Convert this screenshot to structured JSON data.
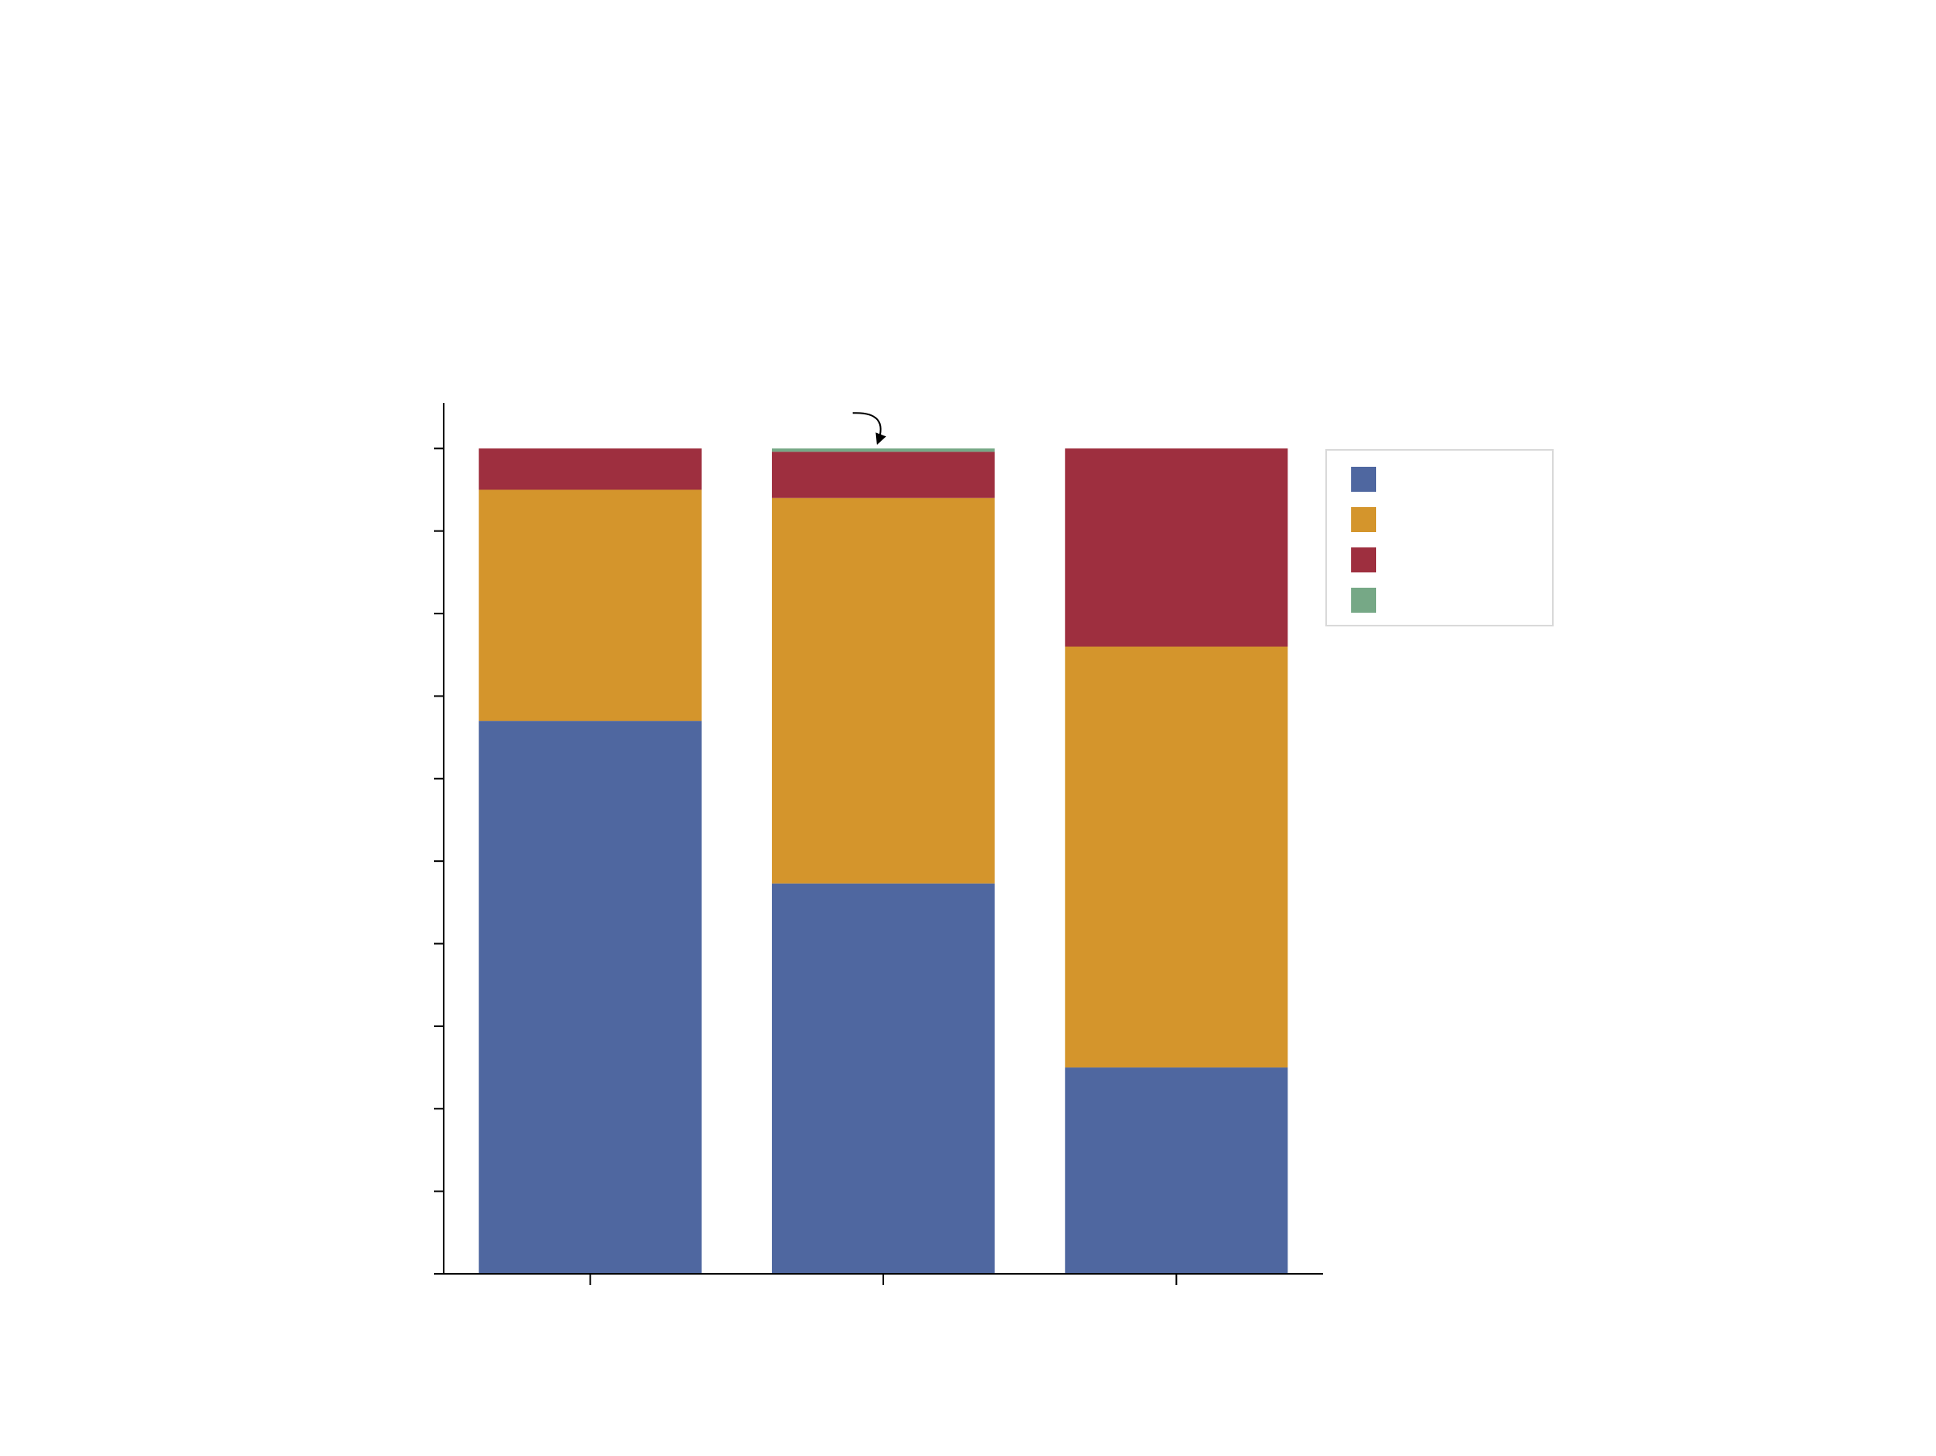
{
  "chart_data": {
    "type": "bar",
    "stacked": true,
    "title": "",
    "xlabel": "",
    "ylabel": "",
    "categories": [
      "",
      "",
      ""
    ],
    "ylim": [
      0,
      1.055
    ],
    "yticks": [
      0,
      0.1,
      0.2,
      0.3,
      0.4,
      0.5,
      0.6,
      0.7,
      0.8,
      0.9,
      1.0
    ],
    "series": [
      {
        "color": "#4f67a0",
        "values": [
          0.67,
          0.473,
          0.25
        ]
      },
      {
        "color": "#d4952c",
        "values": [
          0.28,
          0.467,
          0.51
        ]
      },
      {
        "color": "#9e2f3f",
        "values": [
          0.05,
          0.056,
          0.24
        ]
      },
      {
        "color": "#76a886",
        "values": [
          0.0,
          0.004,
          0.0
        ]
      }
    ],
    "annotation": {
      "type": "arrow",
      "category_index": 1,
      "points_to": 1.0
    },
    "grid": false,
    "legend_position": "right"
  }
}
